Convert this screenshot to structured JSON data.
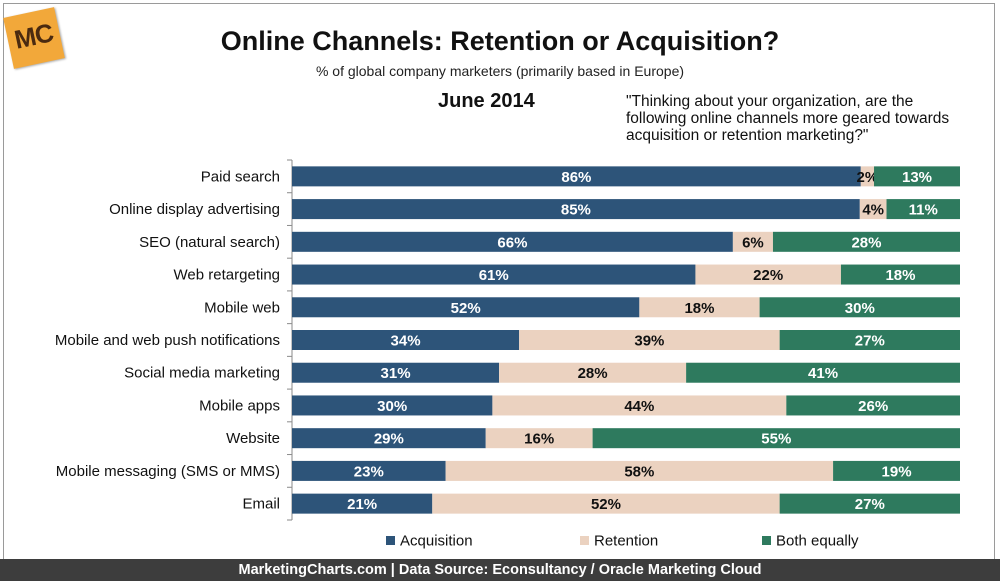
{
  "header": {
    "logo_text": "MC",
    "title": "Online Channels: Retention or Acquisition?",
    "subtitle": "% of global company marketers (primarily based in Europe)",
    "date": "June 2014",
    "question": "\"Thinking about your organization, are the following online channels more geared towards acquisition or retention marketing?\""
  },
  "footer": {
    "text": "MarketingCharts.com | Data Source: Econsultancy / Oracle Marketing Cloud"
  },
  "colors": {
    "acquisition": "#2d5479",
    "retention": "#ebd2c0",
    "both": "#2e7a5e"
  },
  "chart_data": {
    "type": "bar",
    "orientation": "horizontal",
    "stacked": true,
    "xlim": [
      0,
      100
    ],
    "grid": false,
    "legend_position": "bottom",
    "categories": [
      "Paid search",
      "Online display advertising",
      "SEO (natural search)",
      "Web retargeting",
      "Mobile web",
      "Mobile and web push notifications",
      "Social media marketing",
      "Mobile apps",
      "Website",
      "Mobile messaging (SMS or MMS)",
      "Email"
    ],
    "series": [
      {
        "name": "Acquisition",
        "values": [
          86,
          85,
          66,
          61,
          52,
          34,
          31,
          30,
          29,
          23,
          21
        ]
      },
      {
        "name": "Retention",
        "values": [
          2,
          4,
          6,
          22,
          18,
          39,
          28,
          44,
          16,
          58,
          52
        ]
      },
      {
        "name": "Both equally",
        "values": [
          13,
          11,
          28,
          18,
          30,
          27,
          41,
          26,
          55,
          19,
          27
        ]
      }
    ],
    "value_suffix": "%"
  }
}
